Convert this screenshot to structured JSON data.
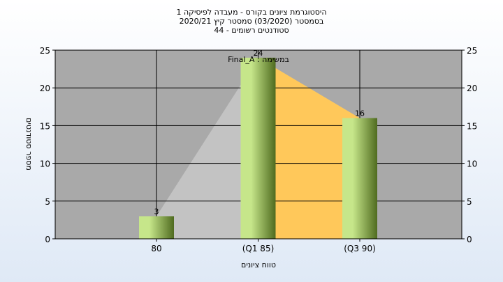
{
  "title_lines": [
    "היסטוגרמת ציונים בקורס - מעבדה לפיסיקה 1",
    "בסמסטר  (03/2020)  סמסטר קיץ  2020/21",
    "סטודנטים רשומים - 44"
  ],
  "chart_data": {
    "type": "bar",
    "subtitle": "במשימה : Final_A",
    "categories": [
      "80",
      "(Q1 85)",
      "(Q3 90)"
    ],
    "values": [
      3,
      24,
      16
    ],
    "data_labels": [
      "3",
      "24",
      "16"
    ],
    "xlabel": "טווח ציונים",
    "ylabel": "מספר סטודנטים",
    "ylim": [
      0,
      25
    ],
    "yticks": [
      0,
      5,
      10,
      15,
      20,
      25
    ],
    "ytick_labels": [
      "0",
      "5",
      "10",
      "15",
      "20",
      "25"
    ],
    "grid": true,
    "colors": {
      "plot_bg": "#a9a9a9",
      "bar_light": "#c6e68a",
      "bar_dark": "#4f6b1f",
      "area_gray": "#c3c3c3",
      "area_orange": "#ffc85a"
    }
  }
}
